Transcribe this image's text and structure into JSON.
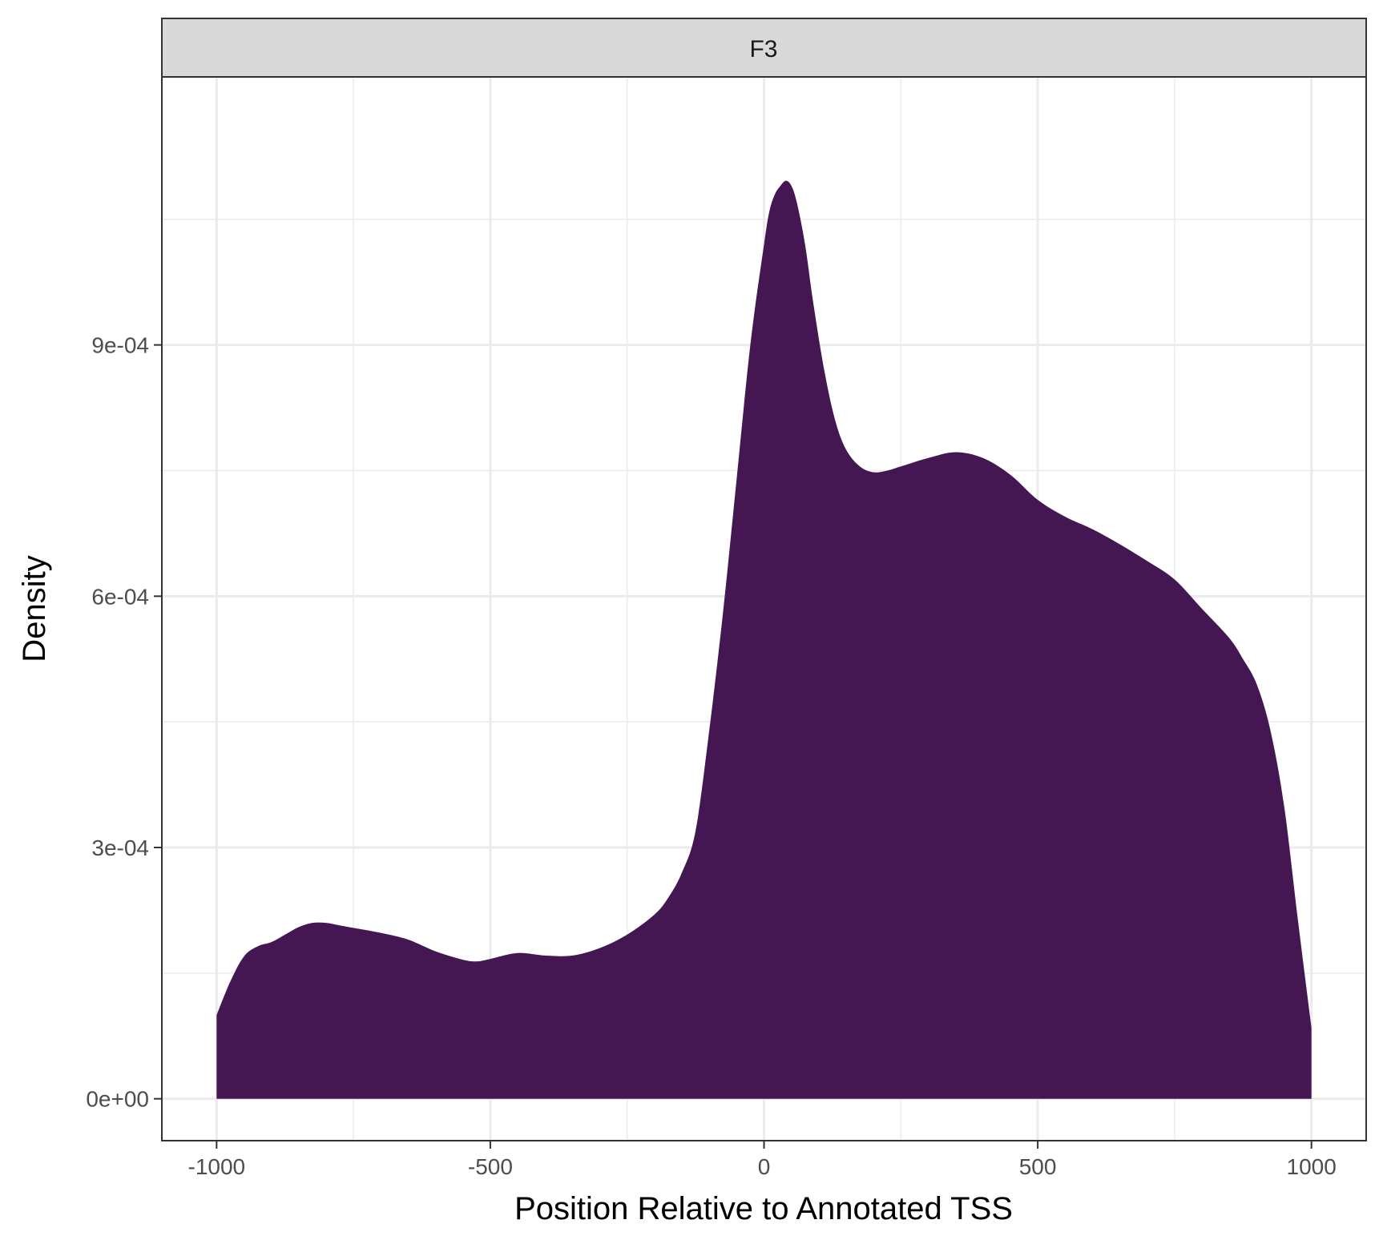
{
  "chart_data": {
    "type": "area",
    "panel_label": "F3",
    "xlabel": "Position Relative to Annotated TSS",
    "ylabel": "Density",
    "xlim": [
      -1100,
      1100
    ],
    "ylim": [
      -5e-05,
      0.00122
    ],
    "x_ticks": [
      -1000,
      -500,
      0,
      500,
      1000
    ],
    "x_tick_labels": [
      "-1000",
      "-500",
      "0",
      "500",
      "1000"
    ],
    "y_ticks": [
      0,
      0.0003,
      0.0006,
      0.0009
    ],
    "y_tick_labels": [
      "0e+00",
      "3e-04",
      "6e-04",
      "9e-04"
    ],
    "grid": true,
    "fill_color": "#441752",
    "series": [
      {
        "x": [
          -1000,
          -975,
          -950,
          -925,
          -900,
          -875,
          -850,
          -825,
          -800,
          -775,
          -750,
          -700,
          -650,
          -600,
          -550,
          -525,
          -500,
          -450,
          -400,
          -350,
          -300,
          -250,
          -200,
          -175,
          -150,
          -125,
          -100,
          -75,
          -50,
          -25,
          0,
          10,
          20,
          30,
          40,
          50,
          60,
          75,
          90,
          110,
          130,
          150,
          175,
          200,
          225,
          250,
          300,
          350,
          400,
          450,
          500,
          550,
          600,
          650,
          700,
          750,
          800,
          850,
          875,
          900,
          925,
          950,
          975,
          1000
        ],
        "y": [
          0.0001,
          0.00014,
          0.00017,
          0.000182,
          0.000187,
          0.000196,
          0.000205,
          0.00021,
          0.00021,
          0.000207,
          0.000204,
          0.000198,
          0.00019,
          0.000176,
          0.000166,
          0.000164,
          0.000167,
          0.000174,
          0.000171,
          0.000171,
          0.00018,
          0.000196,
          0.00022,
          0.00024,
          0.00027,
          0.00032,
          0.00044,
          0.00058,
          0.00074,
          0.0009,
          0.00102,
          0.00106,
          0.00108,
          0.00109,
          0.001096,
          0.00109,
          0.00107,
          0.00102,
          0.00095,
          0.00087,
          0.00081,
          0.000775,
          0.000755,
          0.000748,
          0.00075,
          0.000755,
          0.000765,
          0.000772,
          0.000765,
          0.000745,
          0.000715,
          0.000695,
          0.00068,
          0.000662,
          0.000642,
          0.00062,
          0.000585,
          0.00055,
          0.000525,
          0.000495,
          0.00044,
          0.00035,
          0.000215,
          8.5e-05
        ]
      }
    ]
  }
}
